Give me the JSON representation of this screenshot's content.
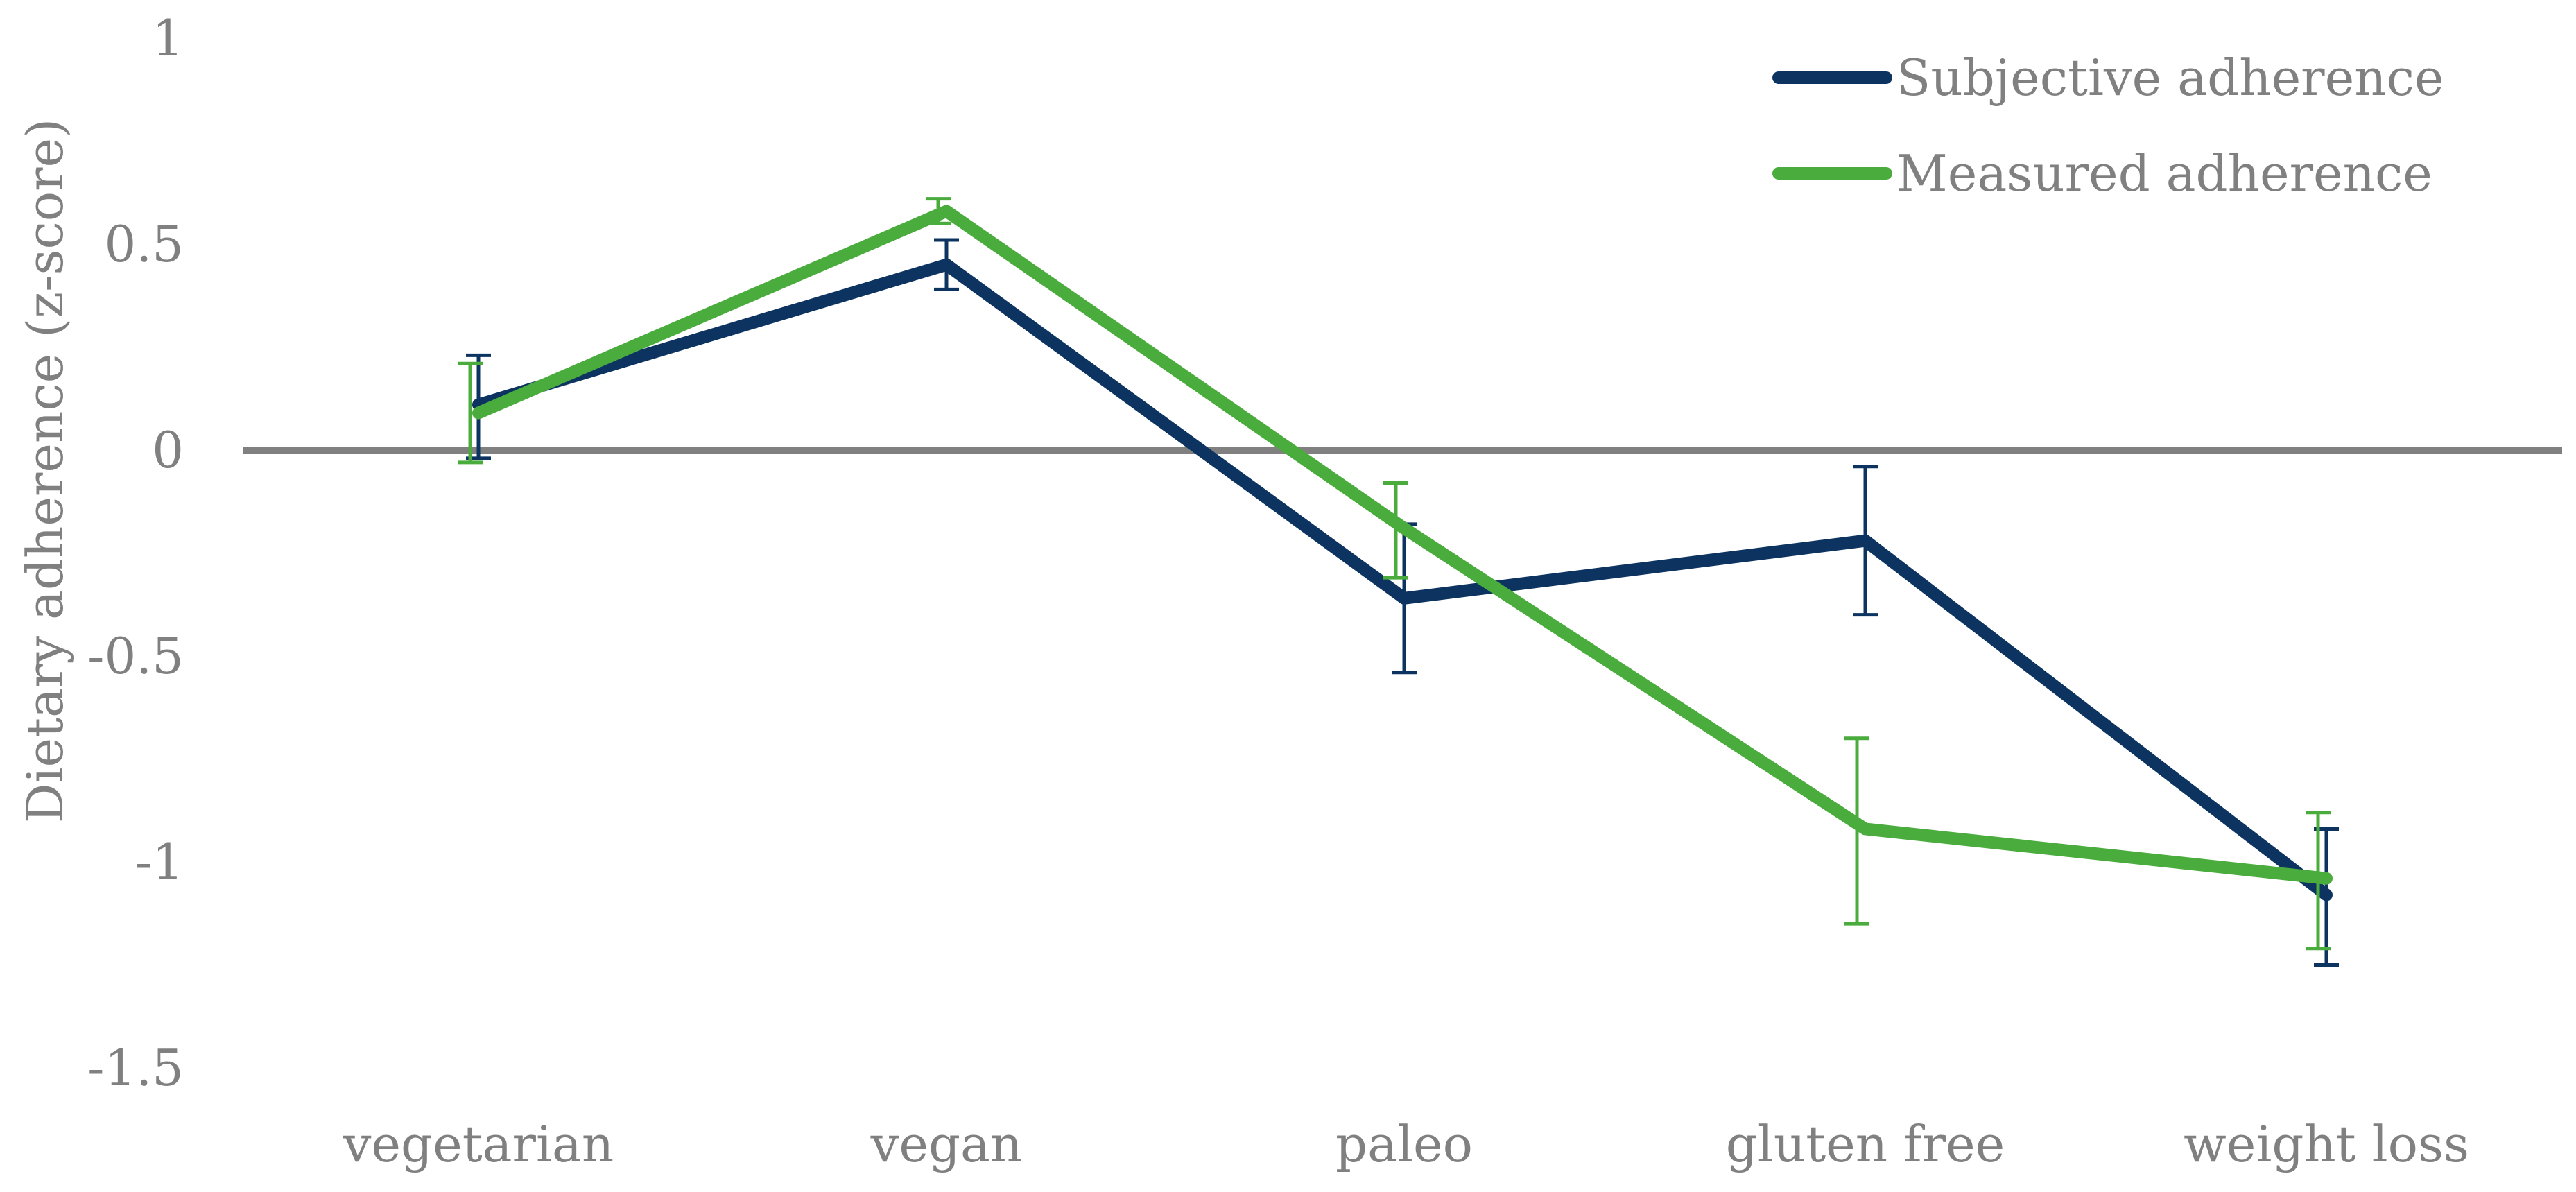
{
  "chart_data": {
    "type": "line",
    "title": "",
    "xlabel": "",
    "ylabel": "Dietary adherence (z-score)",
    "ylim": [
      -1.5,
      1
    ],
    "yticks": [
      1,
      0.5,
      0,
      -0.5,
      -1,
      -1.5
    ],
    "ytick_labels": [
      "1",
      "0.5",
      "0",
      "-0.5",
      "-1",
      "-1.5"
    ],
    "categories": [
      "vegetarian",
      "vegan",
      "paleo",
      "gluten free",
      "weight loss"
    ],
    "legend_position": "top-right",
    "zero_line": true,
    "series": [
      {
        "name": "Subjective adherence",
        "color": "#0d3461",
        "values": [
          0.11,
          0.45,
          -0.36,
          -0.22,
          -1.08
        ],
        "err_upper": [
          0.23,
          0.51,
          -0.18,
          -0.04,
          -0.92
        ],
        "err_lower": [
          -0.02,
          0.39,
          -0.54,
          -0.4,
          -1.25
        ]
      },
      {
        "name": "Measured adherence",
        "color": "#4aac3c",
        "values": [
          0.09,
          0.58,
          -0.19,
          -0.92,
          -1.04
        ],
        "err_upper": [
          0.21,
          0.61,
          -0.08,
          -0.7,
          -0.88
        ],
        "err_lower": [
          -0.03,
          0.55,
          -0.31,
          -1.15,
          -1.21
        ]
      }
    ]
  }
}
